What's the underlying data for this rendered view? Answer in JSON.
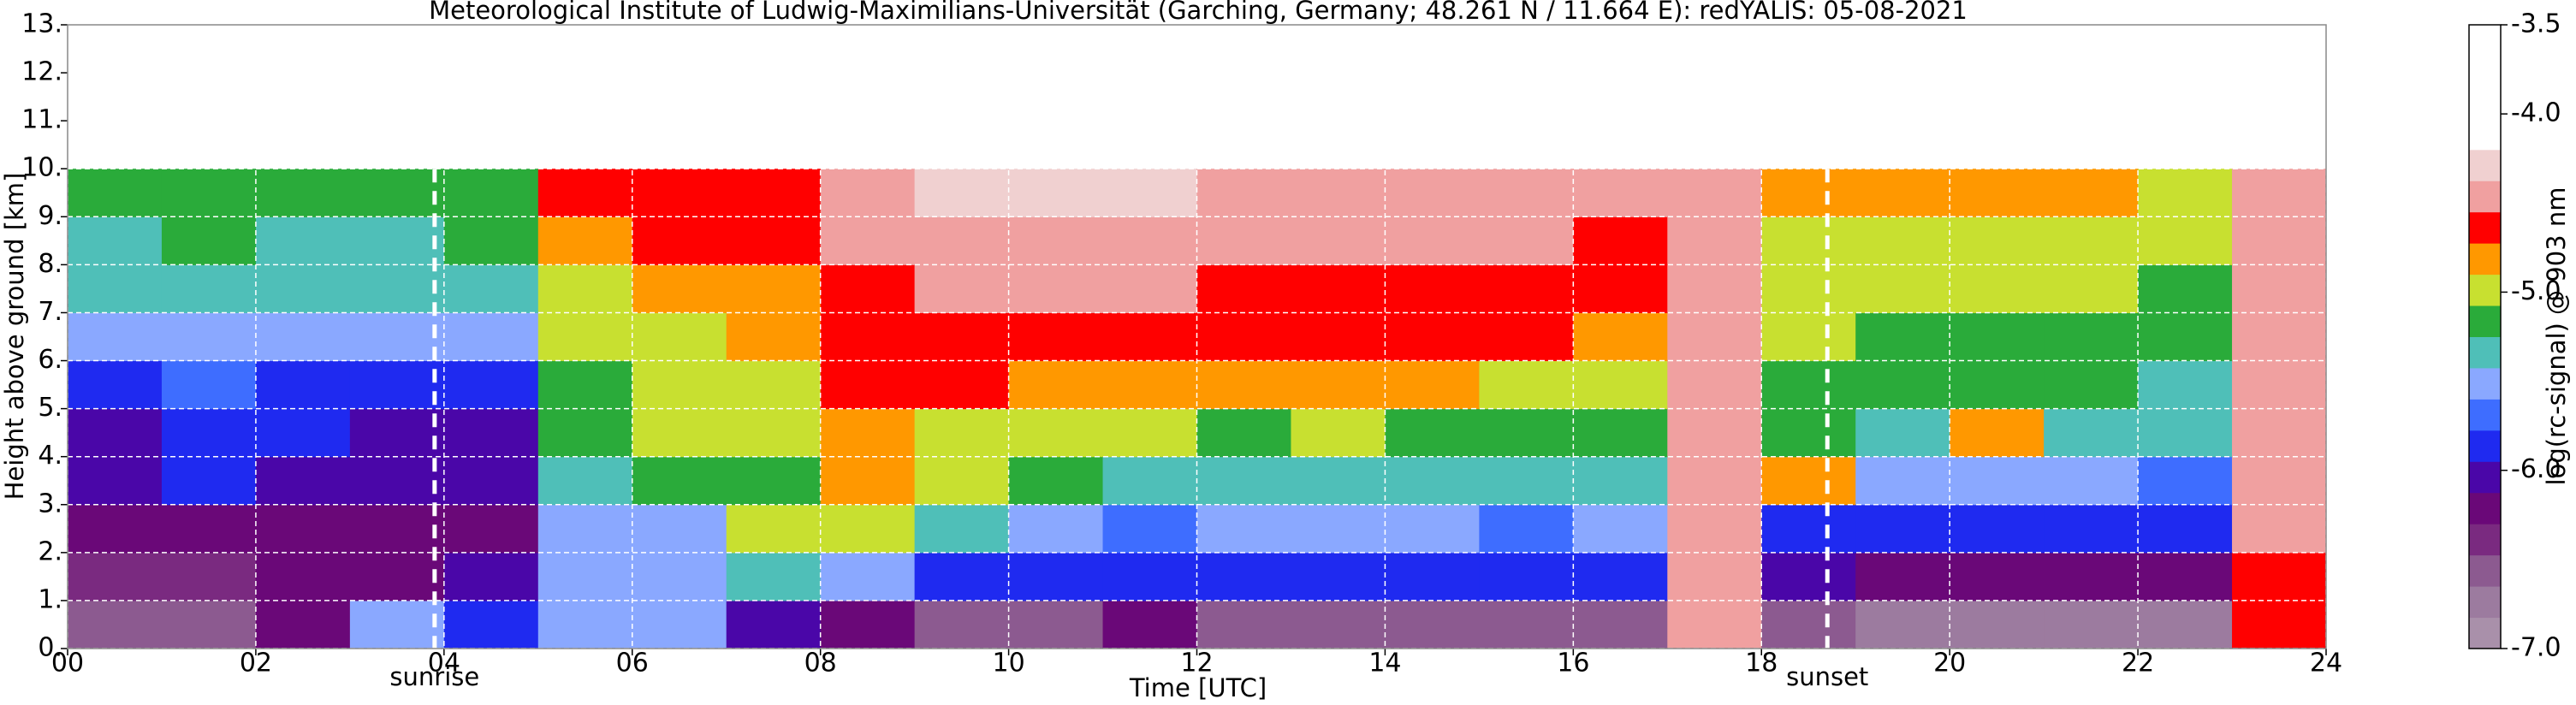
{
  "chart_data": {
    "type": "heatmap",
    "title": "Meteorological Institute of Ludwig-Maximilians-Universität (Garching, Germany; 48.261 N / 11.664 E):    redYALIS: 05-08-2021",
    "xlabel": "Time [UTC]",
    "ylabel": "Height above ground [km]",
    "xlim": [
      0,
      24
    ],
    "ylim": [
      0,
      13
    ],
    "xticks": [
      {
        "value": 0,
        "label": "00"
      },
      {
        "value": 2,
        "label": "02"
      },
      {
        "value": 4,
        "label": "04"
      },
      {
        "value": 6,
        "label": "06"
      },
      {
        "value": 8,
        "label": "08"
      },
      {
        "value": 10,
        "label": "10"
      },
      {
        "value": 12,
        "label": "12"
      },
      {
        "value": 14,
        "label": "14"
      },
      {
        "value": 16,
        "label": "16"
      },
      {
        "value": 18,
        "label": "18"
      },
      {
        "value": 20,
        "label": "20"
      },
      {
        "value": 22,
        "label": "22"
      },
      {
        "value": 24,
        "label": "24"
      }
    ],
    "yticks": [
      {
        "value": 0,
        "label": "0."
      },
      {
        "value": 1,
        "label": "1."
      },
      {
        "value": 2,
        "label": "2."
      },
      {
        "value": 3,
        "label": "3."
      },
      {
        "value": 4,
        "label": "4."
      },
      {
        "value": 5,
        "label": "5."
      },
      {
        "value": 6,
        "label": "6."
      },
      {
        "value": 7,
        "label": "7."
      },
      {
        "value": 8,
        "label": "8."
      },
      {
        "value": 9,
        "label": "9."
      },
      {
        "value": 10,
        "label": "10."
      },
      {
        "value": 11,
        "label": "11."
      },
      {
        "value": 12,
        "label": "12."
      },
      {
        "value": 13,
        "label": "13."
      }
    ],
    "grid": true,
    "x_bins": [
      0,
      1,
      2,
      3,
      4,
      5,
      6,
      7,
      8,
      9,
      10,
      11,
      12,
      13,
      14,
      15,
      16,
      17,
      18,
      19,
      20,
      21,
      22,
      23,
      24
    ],
    "y_bins": [
      0,
      1,
      2,
      3,
      4,
      5,
      6,
      7,
      8,
      9,
      10
    ],
    "z": [
      [
        -6.5,
        -6.5,
        -6.3,
        -5.5,
        -5.8,
        -5.5,
        -5.6,
        -6.0,
        -6.2,
        -6.5,
        -6.5,
        -6.3,
        -6.5,
        -6.5,
        -6.5,
        -6.5,
        -6.5,
        -4.5,
        -6.6,
        -6.7,
        -6.7,
        -6.7,
        -6.7,
        -4.6
      ],
      [
        -6.4,
        -6.4,
        -6.3,
        -6.2,
        -6.0,
        -5.5,
        -5.6,
        -5.4,
        -5.5,
        -5.8,
        -5.8,
        -5.9,
        -5.9,
        -5.8,
        -5.9,
        -5.9,
        -5.8,
        -4.5,
        -6.1,
        -6.2,
        -6.2,
        -6.2,
        -6.2,
        -4.6
      ],
      [
        -6.3,
        -6.3,
        -6.3,
        -6.3,
        -6.2,
        -5.6,
        -5.5,
        -5.0,
        -4.9,
        -5.4,
        -5.6,
        -5.7,
        -5.6,
        -5.6,
        -5.6,
        -5.7,
        -5.6,
        -4.5,
        -5.9,
        -5.8,
        -5.8,
        -5.9,
        -5.9,
        -4.5
      ],
      [
        -6.0,
        -5.9,
        -6.0,
        -6.1,
        -6.1,
        -5.3,
        -5.1,
        -5.1,
        -4.8,
        -5.0,
        -5.2,
        -5.3,
        -5.4,
        -5.3,
        -5.4,
        -5.4,
        -5.4,
        -4.5,
        -4.8,
        -5.5,
        -5.5,
        -5.6,
        -5.7,
        -4.5
      ],
      [
        -6.0,
        -5.8,
        -5.9,
        -6.0,
        -6.0,
        -5.2,
        -4.9,
        -5.0,
        -4.8,
        -4.9,
        -5.0,
        -5.0,
        -5.1,
        -5.0,
        -5.1,
        -5.1,
        -5.2,
        -4.5,
        -5.2,
        -5.3,
        -4.8,
        -5.3,
        -5.4,
        -4.5
      ],
      [
        -5.8,
        -5.7,
        -5.8,
        -5.9,
        -5.8,
        -5.1,
        -4.9,
        -4.9,
        -4.7,
        -4.7,
        -4.8,
        -4.8,
        -4.8,
        -4.8,
        -4.8,
        -4.9,
        -5.0,
        -4.5,
        -5.1,
        -5.2,
        -5.2,
        -5.2,
        -5.3,
        -4.5
      ],
      [
        -5.6,
        -5.5,
        -5.6,
        -5.6,
        -5.5,
        -5.0,
        -4.9,
        -4.8,
        -4.7,
        -4.6,
        -4.6,
        -4.6,
        -4.7,
        -4.7,
        -4.7,
        -4.7,
        -4.8,
        -4.5,
        -5.0,
        -5.1,
        -5.1,
        -5.1,
        -5.2,
        -4.5
      ],
      [
        -5.4,
        -5.3,
        -5.4,
        -5.4,
        -5.3,
        -4.9,
        -4.8,
        -4.8,
        -4.6,
        -4.5,
        -4.5,
        -4.5,
        -4.6,
        -4.6,
        -4.6,
        -4.6,
        -4.7,
        -4.5,
        -5.0,
        -5.0,
        -5.0,
        -5.0,
        -5.1,
        -4.5
      ],
      [
        -5.3,
        -5.2,
        -5.3,
        -5.3,
        -5.2,
        -4.8,
        -4.7,
        -4.7,
        -4.5,
        -4.4,
        -4.4,
        -4.4,
        -4.5,
        -4.5,
        -4.5,
        -4.5,
        -4.6,
        -4.5,
        -4.9,
        -4.9,
        -4.9,
        -4.9,
        -5.0,
        -4.5
      ],
      [
        -5.2,
        -5.1,
        -5.2,
        -5.2,
        -5.1,
        -4.7,
        -4.6,
        -4.6,
        -4.4,
        -4.3,
        -4.3,
        -4.3,
        -4.4,
        -4.4,
        -4.4,
        -4.4,
        -4.5,
        -4.5,
        -4.8,
        -4.8,
        -4.8,
        -4.8,
        -4.9,
        -4.5
      ]
    ],
    "zlim": [
      -7,
      -3.5
    ],
    "zticks": [
      -3.5,
      {
        "value": -4,
        "label": "-4.0"
      },
      {
        "value": -5,
        "label": "-5.0"
      },
      {
        "value": -6,
        "label": "-6.0"
      },
      {
        "value": -7,
        "label": "-7.0"
      }
    ],
    "zlabel": "log(rc-signal) @ 903 nm",
    "colorscale": [
      "#a990aa",
      "#9c7b9f",
      "#8c5a90",
      "#7a2a80",
      "#6a0878",
      "#4a06a8",
      "#1f2af0",
      "#3e6dff",
      "#8aa8ff",
      "#4fbfb8",
      "#2aab3a",
      "#c8e030",
      "#ff9800",
      "#ff0000",
      "#f0a0a0",
      "#f0d0d0",
      "#ffffff",
      "#ffffff",
      "#ffffff",
      "#ffffff"
    ],
    "annotations": [
      {
        "text": "sunrise",
        "x": 3.9
      },
      {
        "text": "sunset",
        "x": 18.7
      }
    ]
  }
}
